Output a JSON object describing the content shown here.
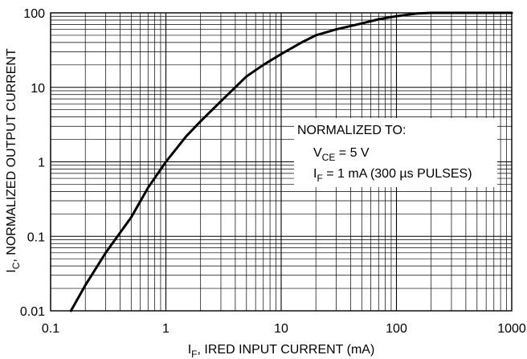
{
  "chart_data": {
    "type": "line",
    "x_scale": "log",
    "y_scale": "log",
    "xlim": [
      0.1,
      1000
    ],
    "ylim": [
      0.01,
      100
    ],
    "x_ticks": [
      "0.1",
      "1",
      "10",
      "100",
      "1000"
    ],
    "y_ticks": [
      "0.01",
      "0.1",
      "1",
      "10",
      "100"
    ],
    "grid": true,
    "xlabel": {
      "main": "I",
      "sub": "F",
      "rest": ", IRED INPUT CURRENT (mA)"
    },
    "ylabel": {
      "main": "I",
      "sub": "C",
      "rest": ", NORMALIZED OUTPUT CURRENT"
    },
    "annotation": {
      "line1": "NORMALIZED TO:",
      "line2": {
        "main": "V",
        "sub": "CE",
        "rest": " = 5 V"
      },
      "line3": {
        "main": "I",
        "sub": "F",
        "rest": " = 1 mA (300 µs PULSES)"
      }
    },
    "series": [
      {
        "x": [
          0.15,
          0.2,
          0.3,
          0.5,
          0.7,
          1,
          1.5,
          2,
          3,
          5,
          7,
          10,
          15,
          20,
          30,
          50,
          70,
          100,
          150,
          200,
          300,
          500,
          700,
          1000
        ],
        "y": [
          0.01,
          0.022,
          0.06,
          0.18,
          0.45,
          1.0,
          2.2,
          3.5,
          6.5,
          14,
          20,
          28,
          40,
          50,
          60,
          72,
          82,
          90,
          98,
          100,
          100,
          100,
          100,
          100
        ]
      }
    ],
    "colors": {
      "curve": "#000000",
      "grid": "#000000",
      "annotation_bg": "#ffffff"
    }
  }
}
